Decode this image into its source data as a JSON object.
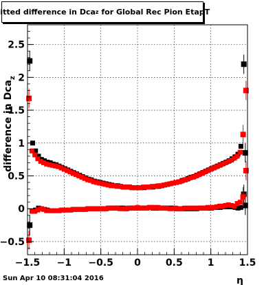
{
  "chart_data": {
    "type": "scatter",
    "title_main": "Fitted difference in Dca",
    "title_sub": "z",
    "title_rest": " for Global Rec Pion EtapT",
    "xlabel": "η",
    "ylabel_main": "difference in Dca",
    "ylabel_sub": "z",
    "xlim": [
      -1.5,
      1.5
    ],
    "ylim": [
      -0.7,
      2.8
    ],
    "grid": true,
    "x_ticks": [
      "−1.5",
      "−1",
      "−0.5",
      "0",
      "0.5",
      "1",
      "1.5"
    ],
    "y_ticks": [
      "−0.5",
      "0",
      "0.5",
      "1",
      "1.5",
      "2",
      "2.5"
    ],
    "x_tick_values": [
      -1.5,
      -1,
      -0.5,
      0,
      0.5,
      1,
      1.5
    ],
    "y_tick_values": [
      -0.5,
      0,
      0.5,
      1,
      1.5,
      2,
      2.5
    ],
    "series": [
      {
        "color": "#000000",
        "marker": "square",
        "x": [
          -1.47,
          -1.43,
          -1.39,
          -1.35,
          -1.31,
          -1.27,
          -1.23,
          -1.19,
          -1.15,
          -1.11,
          -1.07,
          -1.03,
          -0.99,
          -0.95,
          -0.91,
          -0.87,
          -0.83,
          -0.79,
          -0.75,
          -0.71,
          -0.67,
          -0.63,
          -0.59,
          -0.55,
          -0.51,
          -0.47,
          -0.43,
          -0.39,
          -0.35,
          -0.31,
          -0.27,
          -0.23,
          -0.19,
          -0.15,
          -0.11,
          -0.07,
          -0.03,
          0.01,
          0.05,
          0.09,
          0.13,
          0.17,
          0.21,
          0.25,
          0.29,
          0.33,
          0.37,
          0.41,
          0.45,
          0.49,
          0.53,
          0.57,
          0.61,
          0.65,
          0.69,
          0.73,
          0.77,
          0.81,
          0.85,
          0.89,
          0.93,
          0.97,
          1.01,
          1.05,
          1.09,
          1.13,
          1.17,
          1.21,
          1.25,
          1.29,
          1.33,
          1.37,
          1.41,
          1.45,
          1.47
        ],
        "y": [
          2.25,
          1.0,
          0.88,
          0.8,
          0.75,
          0.73,
          0.71,
          0.7,
          0.68,
          0.67,
          0.65,
          0.63,
          0.61,
          0.59,
          0.57,
          0.55,
          0.53,
          0.51,
          0.49,
          0.47,
          0.45,
          0.44,
          0.42,
          0.41,
          0.4,
          0.39,
          0.38,
          0.37,
          0.36,
          0.35,
          0.35,
          0.34,
          0.33,
          0.33,
          0.33,
          0.32,
          0.32,
          0.32,
          0.32,
          0.32,
          0.33,
          0.33,
          0.33,
          0.34,
          0.34,
          0.35,
          0.36,
          0.37,
          0.38,
          0.39,
          0.4,
          0.41,
          0.43,
          0.44,
          0.46,
          0.48,
          0.49,
          0.51,
          0.53,
          0.55,
          0.57,
          0.59,
          0.61,
          0.63,
          0.65,
          0.67,
          0.69,
          0.71,
          0.73,
          0.76,
          0.79,
          0.83,
          0.95,
          2.2,
          0.85
        ],
        "y2": [
          -0.25,
          -0.04,
          -0.02,
          0.01,
          0.0,
          -0.01,
          -0.02,
          -0.03,
          -0.03,
          -0.03,
          -0.03,
          -0.02,
          -0.02,
          -0.02,
          -0.02,
          -0.01,
          -0.01,
          -0.01,
          -0.01,
          -0.01,
          0.0,
          0.0,
          0.0,
          0.0,
          0.0,
          0.0,
          0.0,
          0.01,
          0.01,
          0.01,
          0.01,
          0.01,
          0.01,
          0.0,
          0.01,
          0.01,
          0.01,
          0.01,
          0.01,
          0.01,
          0.01,
          0.02,
          0.01,
          0.01,
          0.01,
          0.01,
          0.01,
          0.01,
          0.01,
          0.01,
          0.0,
          0.0,
          0.0,
          0.0,
          0.0,
          0.0,
          0.0,
          0.0,
          0.01,
          0.01,
          0.01,
          0.01,
          0.01,
          0.02,
          0.02,
          0.02,
          0.03,
          0.03,
          0.03,
          0.03,
          0.02,
          0.01,
          0.02,
          0.22,
          0.05
        ]
      },
      {
        "color": "#ff0000",
        "marker": "square",
        "x": [
          -1.48,
          -1.44,
          -1.4,
          -1.36,
          -1.32,
          -1.28,
          -1.24,
          -1.2,
          -1.16,
          -1.12,
          -1.08,
          -1.04,
          -1.0,
          -0.96,
          -0.92,
          -0.88,
          -0.84,
          -0.8,
          -0.76,
          -0.72,
          -0.68,
          -0.64,
          -0.6,
          -0.56,
          -0.52,
          -0.48,
          -0.44,
          -0.4,
          -0.36,
          -0.32,
          -0.28,
          -0.24,
          -0.2,
          -0.16,
          -0.12,
          -0.08,
          -0.04,
          0.0,
          0.04,
          0.08,
          0.12,
          0.16,
          0.2,
          0.24,
          0.28,
          0.32,
          0.36,
          0.4,
          0.44,
          0.48,
          0.52,
          0.56,
          0.6,
          0.64,
          0.68,
          0.72,
          0.76,
          0.8,
          0.84,
          0.88,
          0.92,
          0.96,
          1.0,
          1.04,
          1.08,
          1.12,
          1.16,
          1.2,
          1.24,
          1.28,
          1.32,
          1.36,
          1.4,
          1.44,
          1.48
        ],
        "y": [
          1.68,
          0.88,
          0.82,
          0.76,
          0.72,
          0.7,
          0.68,
          0.67,
          0.66,
          0.65,
          0.64,
          0.62,
          0.6,
          0.58,
          0.56,
          0.54,
          0.52,
          0.5,
          0.48,
          0.46,
          0.44,
          0.43,
          0.41,
          0.4,
          0.39,
          0.38,
          0.37,
          0.36,
          0.35,
          0.35,
          0.34,
          0.34,
          0.33,
          0.33,
          0.33,
          0.32,
          0.32,
          0.32,
          0.32,
          0.33,
          0.33,
          0.33,
          0.34,
          0.34,
          0.35,
          0.35,
          0.36,
          0.37,
          0.38,
          0.39,
          0.4,
          0.41,
          0.42,
          0.44,
          0.45,
          0.47,
          0.48,
          0.5,
          0.52,
          0.54,
          0.56,
          0.58,
          0.6,
          0.62,
          0.64,
          0.66,
          0.68,
          0.7,
          0.72,
          0.74,
          0.77,
          0.8,
          0.86,
          1.13,
          1.8
        ],
        "y2": [
          -0.48,
          -0.04,
          -0.04,
          -0.02,
          0.0,
          -0.01,
          -0.03,
          -0.03,
          -0.03,
          -0.03,
          -0.03,
          -0.02,
          -0.02,
          -0.02,
          -0.02,
          -0.01,
          -0.01,
          -0.01,
          -0.01,
          -0.01,
          0.0,
          0.0,
          0.0,
          0.0,
          0.0,
          0.0,
          0.0,
          0.01,
          0.01,
          0.01,
          0.01,
          0.0,
          0.0,
          0.0,
          0.01,
          0.01,
          0.01,
          0.02,
          0.01,
          0.01,
          0.01,
          0.02,
          0.02,
          0.02,
          0.02,
          0.01,
          0.01,
          0.01,
          0.0,
          0.0,
          0.01,
          0.0,
          0.0,
          0.01,
          0.01,
          0.01,
          0.01,
          0.01,
          0.01,
          0.01,
          0.01,
          0.02,
          0.02,
          0.02,
          0.03,
          0.04,
          0.04,
          0.05,
          0.06,
          0.05,
          0.04,
          0.08,
          0.1,
          0.18,
          0.58
        ]
      }
    ]
  },
  "footer": {
    "timestamp": "Sun Apr 10 08:31:04 2016"
  }
}
